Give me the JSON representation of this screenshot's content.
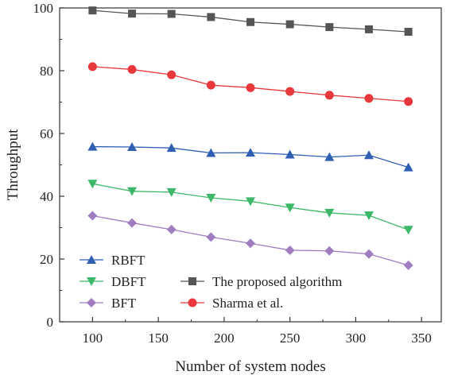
{
  "chart_data": {
    "type": "line",
    "title": "",
    "xlabel": "Number of system nodes",
    "ylabel": "Throughput",
    "xlim": [
      75,
      365
    ],
    "ylim": [
      0,
      100
    ],
    "x_ticks": [
      100,
      150,
      200,
      250,
      300,
      350
    ],
    "y_ticks": [
      0,
      20,
      40,
      60,
      80,
      100
    ],
    "x_tick_labels": [
      "100",
      "150",
      "200",
      "250",
      "300",
      "350"
    ],
    "y_tick_labels": [
      "0",
      "20",
      "40",
      "60",
      "80",
      "100"
    ],
    "grid": false,
    "legend_placement": "bottom-left",
    "x": [
      100,
      130,
      160,
      190,
      220,
      250,
      280,
      310,
      340
    ],
    "series": [
      {
        "name": "RBFT",
        "marker": "triangle-up",
        "color": "#2f5fb3",
        "values": [
          55.8,
          55.7,
          55.4,
          53.8,
          53.9,
          53.3,
          52.5,
          53.1,
          49.2
        ]
      },
      {
        "name": "DBFT",
        "marker": "triangle-down",
        "color": "#3cb868",
        "values": [
          44.0,
          41.6,
          41.3,
          39.5,
          38.4,
          36.4,
          34.7,
          33.9,
          29.3
        ]
      },
      {
        "name": "BFT",
        "marker": "diamond",
        "color": "#a07cc0",
        "values": [
          33.8,
          31.5,
          29.4,
          27.0,
          25.0,
          22.8,
          22.6,
          21.6,
          18.0
        ]
      },
      {
        "name": "The proposed algorithm",
        "marker": "square",
        "color": "#555555",
        "values": [
          99.2,
          98.2,
          98.1,
          97.1,
          95.5,
          94.8,
          93.9,
          93.2,
          92.4
        ]
      },
      {
        "name": "Sharma et al.",
        "marker": "circle",
        "color": "#e8383b",
        "values": [
          81.3,
          80.4,
          78.7,
          75.4,
          74.6,
          73.4,
          72.2,
          71.2,
          70.2
        ]
      }
    ]
  }
}
